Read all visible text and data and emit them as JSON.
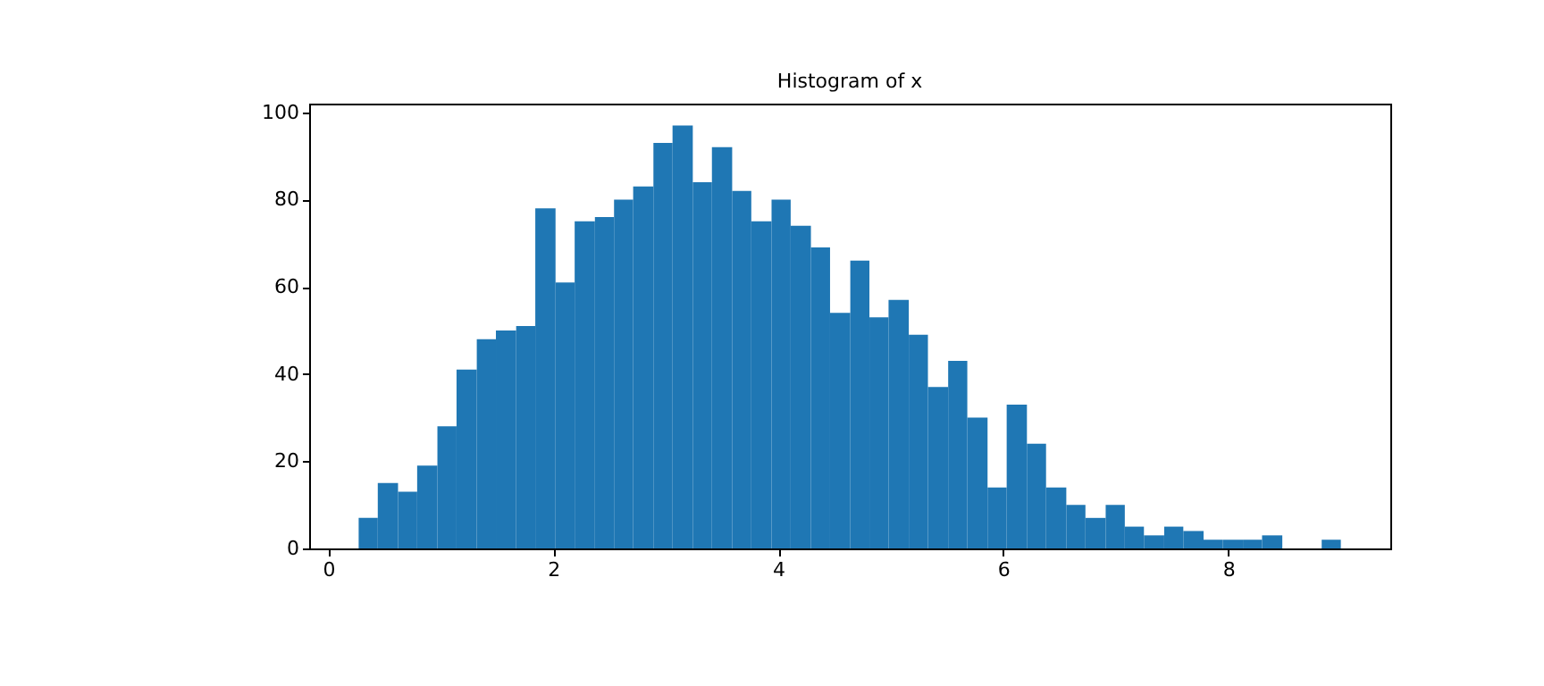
{
  "chart_data": {
    "type": "histogram",
    "title": "Histogram of x",
    "color": "#1f77b4",
    "bins": [
      0.27,
      0.44,
      0.62,
      0.79,
      0.97,
      1.14,
      1.32,
      1.49,
      1.67,
      1.84,
      2.02,
      2.19,
      2.37,
      2.54,
      2.71,
      2.89,
      3.06,
      3.24,
      3.41,
      3.59,
      3.76,
      3.94,
      4.11,
      4.29,
      4.46,
      4.64,
      4.81,
      4.98,
      5.16,
      5.33,
      5.51,
      5.68,
      5.86,
      6.03,
      6.21,
      6.38,
      6.56,
      6.73,
      6.91,
      7.08,
      7.25,
      7.43,
      7.6,
      7.78,
      7.95,
      8.13,
      8.3,
      8.48,
      8.83,
      9.0
    ],
    "values": [
      7,
      15,
      13,
      19,
      28,
      41,
      48,
      50,
      51,
      78,
      61,
      75,
      76,
      80,
      83,
      93,
      97,
      84,
      92,
      82,
      75,
      80,
      74,
      69,
      54,
      66,
      53,
      57,
      49,
      37,
      43,
      30,
      14,
      33,
      24,
      14,
      10,
      7,
      10,
      5,
      3,
      5,
      4,
      2,
      2,
      2,
      3,
      0,
      2
    ],
    "xlim": [
      -0.17,
      9.44
    ],
    "xticks": [
      0,
      2,
      4,
      6,
      8
    ],
    "ylim": [
      0,
      102
    ],
    "yticks": [
      0,
      20,
      40,
      60,
      80,
      100
    ],
    "grid": false
  }
}
